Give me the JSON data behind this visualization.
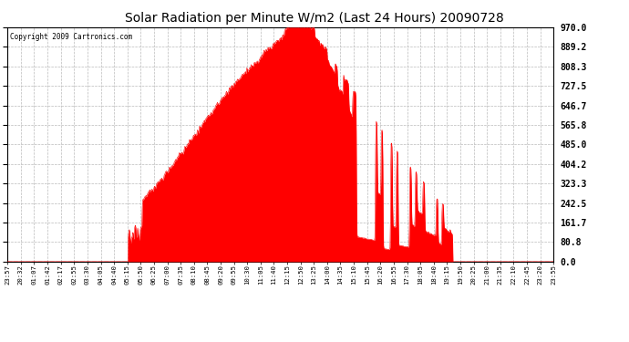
{
  "title": "Solar Radiation per Minute W/m2 (Last 24 Hours) 20090728",
  "copyright": "Copyright 2009 Cartronics.com",
  "yticks": [
    0.0,
    80.8,
    161.7,
    242.5,
    323.3,
    404.2,
    485.0,
    565.8,
    646.7,
    727.5,
    808.3,
    889.2,
    970.0
  ],
  "ymin": 0.0,
  "ymax": 970.0,
  "fill_color": "#ff0000",
  "line_color": "#ff0000",
  "background_color": "#ffffff",
  "grid_color": "#bbbbbb",
  "dashed_line_color": "#ff0000",
  "xtick_labels": [
    "23:57",
    "20:32",
    "01:07",
    "01:42",
    "02:17",
    "02:55",
    "03:30",
    "04:05",
    "04:40",
    "05:15",
    "05:50",
    "06:25",
    "07:00",
    "07:35",
    "08:10",
    "08:45",
    "09:20",
    "09:55",
    "10:30",
    "11:05",
    "11:40",
    "12:15",
    "12:50",
    "13:25",
    "14:00",
    "14:35",
    "15:10",
    "15:45",
    "16:20",
    "16:55",
    "17:30",
    "18:05",
    "18:40",
    "19:15",
    "19:50",
    "20:25",
    "21:00",
    "21:35",
    "22:10",
    "22:45",
    "23:20",
    "23:55"
  ],
  "num_points": 1440,
  "sunrise_idx": 355,
  "sunset_idx": 1175,
  "peak_idx": 790,
  "peak_value": 970.0
}
